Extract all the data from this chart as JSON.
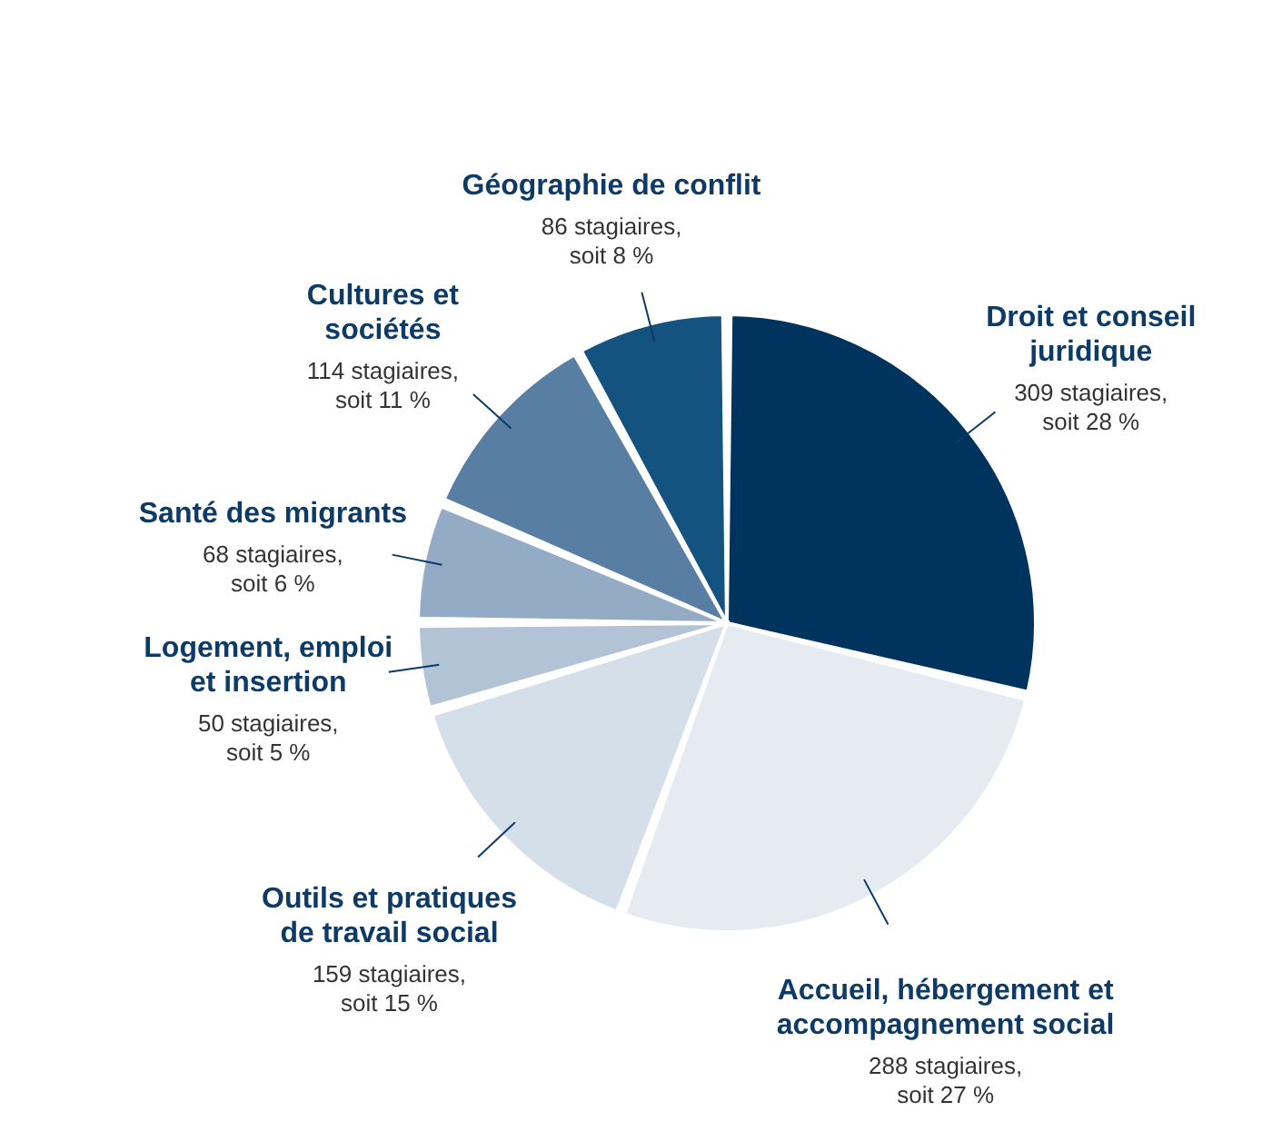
{
  "chart_data": {
    "type": "pie",
    "categories": [
      "Droit et conseil juridique",
      "Accueil, hébergement et accompagnement social",
      "Outils et pratiques de travail social",
      "Logement, emploi et insertion",
      "Santé des migrants",
      "Cultures et sociétés",
      "Géographie de conflit"
    ],
    "values": [
      309,
      288,
      159,
      50,
      68,
      114,
      86
    ],
    "colors": [
      "#00335e",
      "#e6ebf2",
      "#d5dfea",
      "#b2c3d6",
      "#94abc6",
      "#587ea4",
      "#14537f"
    ],
    "value_labels": [
      "309 stagiaires, soit 28 %",
      "288 stagiaires, soit 27 %",
      "159 stagiaires, soit 15 %",
      "50 stagiaires, soit 5 %",
      "68 stagiaires, soit 6 %",
      "114 stagiaires, soit 11 %",
      "86 stagiaires, soit 8 %"
    ]
  }
}
